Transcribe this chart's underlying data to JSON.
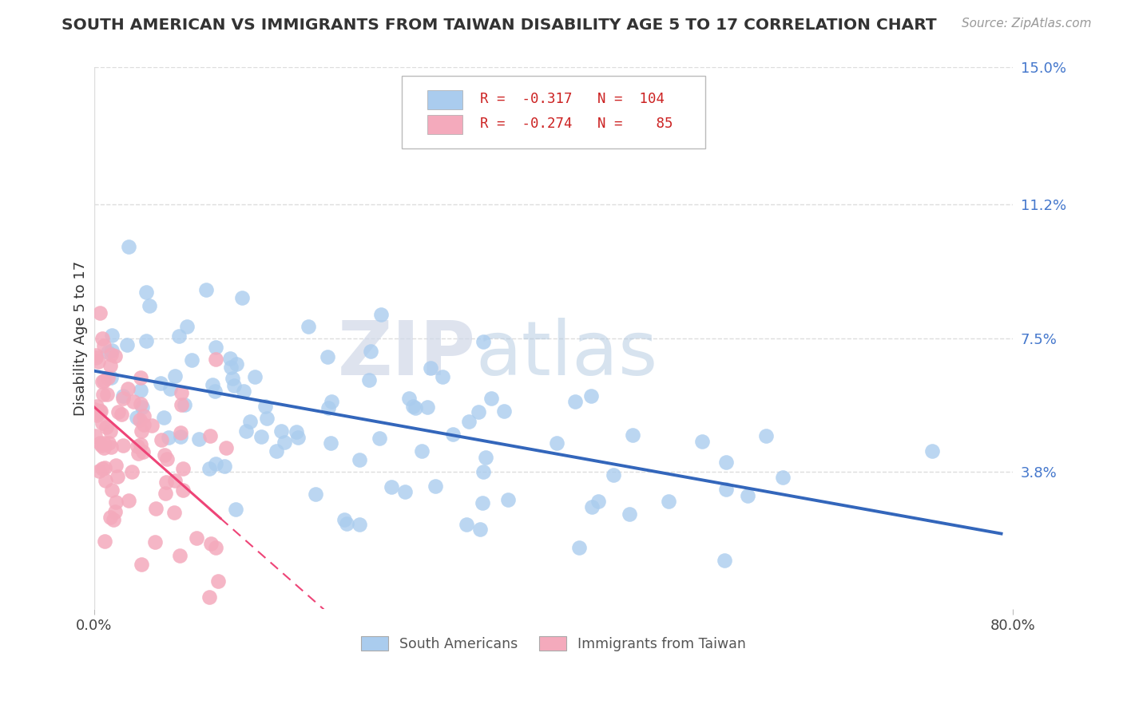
{
  "title": "SOUTH AMERICAN VS IMMIGRANTS FROM TAIWAN DISABILITY AGE 5 TO 17 CORRELATION CHART",
  "source_text": "Source: ZipAtlas.com",
  "ylabel": "Disability Age 5 to 17",
  "xlim": [
    0.0,
    0.8
  ],
  "ylim": [
    0.0,
    0.15
  ],
  "right_yticklabels": [
    "3.8%",
    "7.5%",
    "11.2%",
    "15.0%"
  ],
  "right_ytick_positions": [
    0.038,
    0.075,
    0.112,
    0.15
  ],
  "blue_color": "#aaccee",
  "pink_color": "#f4aabc",
  "blue_trend_color": "#3366bb",
  "pink_trend_color": "#ee4477",
  "watermark_zip": "ZIP",
  "watermark_atlas": "atlas",
  "background_color": "#ffffff",
  "grid_color": "#dddddd"
}
